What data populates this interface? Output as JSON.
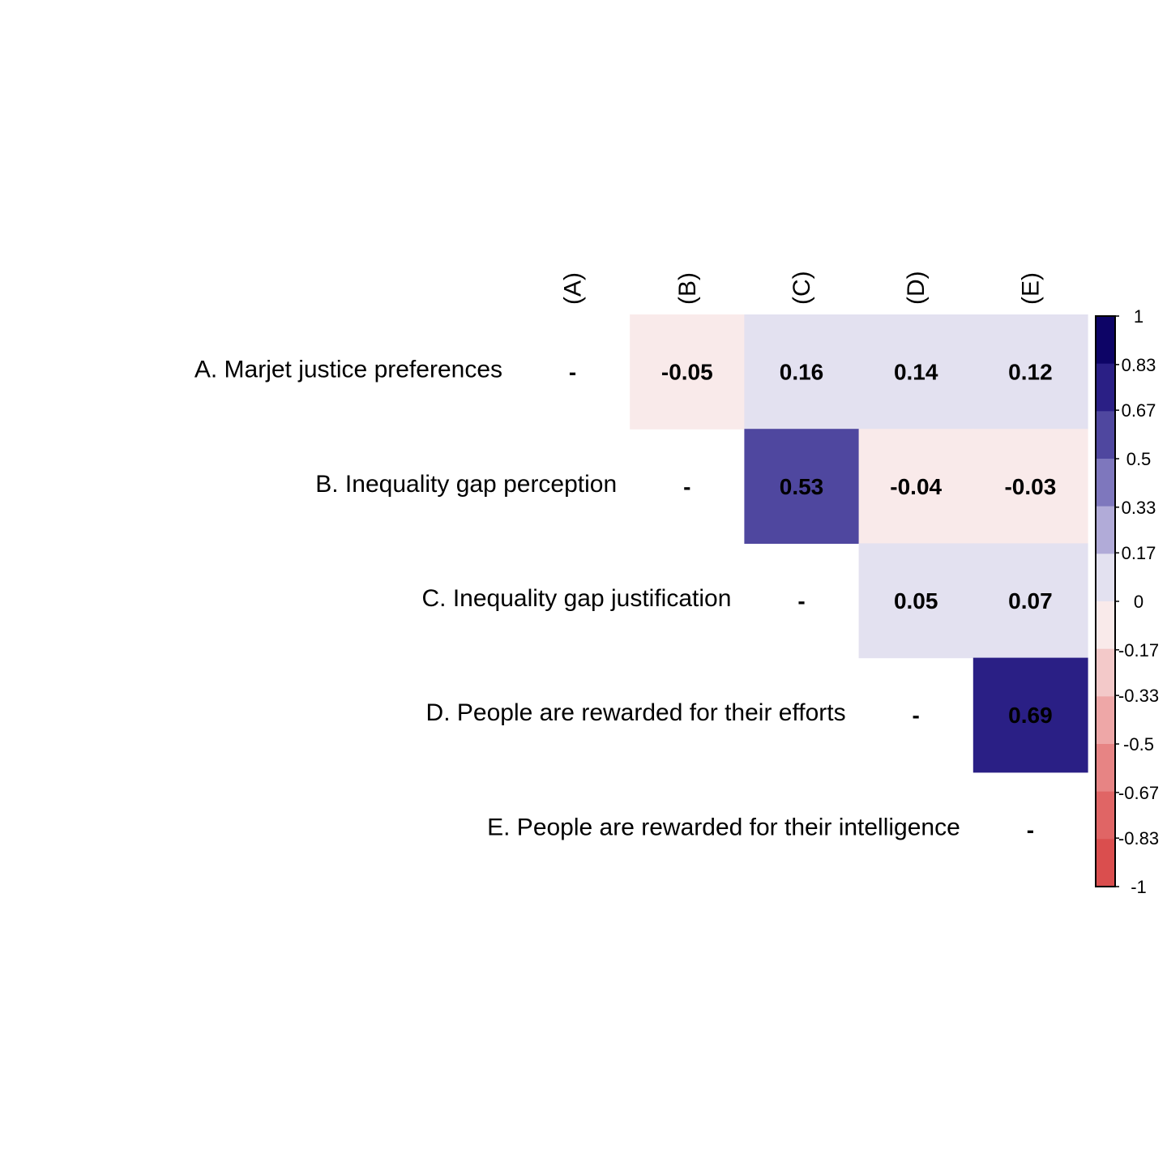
{
  "chart_data": {
    "type": "heatmap",
    "layout": "upper-triangle",
    "row_labels": [
      "A. Marjet justice preferences",
      "B. Inequality gap perception",
      "C. Inequality gap justification",
      "D. People are rewarded for their efforts",
      "E. People are rewarded for their intelligence"
    ],
    "col_labels": [
      "(A)",
      "(B)",
      "(C)",
      "(D)",
      "(E)"
    ],
    "diagonal_label": "-",
    "matrix": [
      [
        null,
        -0.05,
        0.16,
        0.14,
        0.12
      ],
      [
        null,
        null,
        0.53,
        -0.04,
        -0.03
      ],
      [
        null,
        null,
        null,
        0.05,
        0.07
      ],
      [
        null,
        null,
        null,
        null,
        0.69
      ],
      [
        null,
        null,
        null,
        null,
        null
      ]
    ],
    "cell_labels": [
      [
        null,
        "-0.05",
        "0.16",
        "0.14",
        "0.12"
      ],
      [
        null,
        null,
        "0.53",
        "-0.04",
        "-0.03"
      ],
      [
        null,
        null,
        null,
        "0.05",
        "0.07"
      ],
      [
        null,
        null,
        null,
        null,
        "0.69"
      ],
      [
        null,
        null,
        null,
        null,
        null
      ]
    ],
    "color_scale": {
      "range": [
        -1,
        1
      ],
      "tick_labels": [
        "1",
        "0.83",
        "0.67",
        "0.5",
        "0.33",
        "0.17",
        "0",
        "-0.17",
        "-0.33",
        "-0.5",
        "-0.67",
        "-0.83",
        "-1"
      ],
      "tick_values": [
        1,
        0.83,
        0.67,
        0.5,
        0.33,
        0.17,
        0,
        -0.17,
        -0.33,
        -0.5,
        -0.67,
        -0.83,
        -1
      ],
      "bins_top_to_bottom": [
        "#0d0466",
        "#2a1f85",
        "#4f479f",
        "#7e77bd",
        "#b1abd8",
        "#e3e1f0",
        "#f9eaea",
        "#f3c9c9",
        "#eea7a7",
        "#e78484",
        "#e06565",
        "#da4e4e"
      ]
    }
  }
}
